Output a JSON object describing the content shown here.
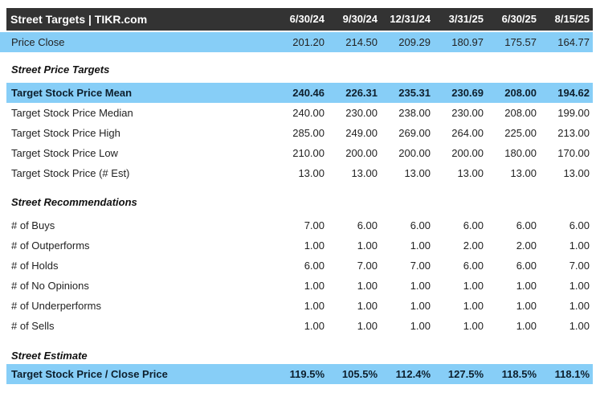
{
  "header": {
    "title": "Street Targets | TIKR.com",
    "columns": [
      "6/30/24",
      "9/30/24",
      "12/31/24",
      "3/31/25",
      "6/30/25",
      "8/15/25"
    ]
  },
  "price_close": {
    "label": "Price Close",
    "values": [
      "201.20",
      "214.50",
      "209.29",
      "180.97",
      "175.57",
      "164.77"
    ]
  },
  "sections": [
    {
      "title": "Street Price Targets",
      "rows": [
        {
          "label": "Target Stock Price Mean",
          "values": [
            "240.46",
            "226.31",
            "235.31",
            "230.69",
            "208.00",
            "194.62"
          ]
        },
        {
          "label": "Target Stock Price Median",
          "values": [
            "240.00",
            "230.00",
            "238.00",
            "230.00",
            "208.00",
            "199.00"
          ]
        },
        {
          "label": "Target Stock Price High",
          "values": [
            "285.00",
            "249.00",
            "269.00",
            "264.00",
            "225.00",
            "213.00"
          ]
        },
        {
          "label": "Target Stock Price Low",
          "values": [
            "210.00",
            "200.00",
            "200.00",
            "200.00",
            "180.00",
            "170.00"
          ]
        },
        {
          "label": "Target Stock Price (# Est)",
          "values": [
            "13.00",
            "13.00",
            "13.00",
            "13.00",
            "13.00",
            "13.00"
          ]
        }
      ]
    },
    {
      "title": "Street Recommendations",
      "rows": [
        {
          "label": "# of Buys",
          "values": [
            "7.00",
            "6.00",
            "6.00",
            "6.00",
            "6.00",
            "6.00"
          ]
        },
        {
          "label": "# of Outperforms",
          "values": [
            "1.00",
            "1.00",
            "1.00",
            "2.00",
            "2.00",
            "1.00"
          ]
        },
        {
          "label": "# of Holds",
          "values": [
            "6.00",
            "7.00",
            "7.00",
            "6.00",
            "6.00",
            "7.00"
          ]
        },
        {
          "label": "# of No Opinions",
          "values": [
            "1.00",
            "1.00",
            "1.00",
            "1.00",
            "1.00",
            "1.00"
          ]
        },
        {
          "label": "# of Underperforms",
          "values": [
            "1.00",
            "1.00",
            "1.00",
            "1.00",
            "1.00",
            "1.00"
          ]
        },
        {
          "label": "# of Sells",
          "values": [
            "1.00",
            "1.00",
            "1.00",
            "1.00",
            "1.00",
            "1.00"
          ]
        }
      ]
    },
    {
      "title": "Street Estimate",
      "rows": [
        {
          "label": "Target Stock Price / Close Price",
          "values": [
            "119.5%",
            "105.5%",
            "112.4%",
            "127.5%",
            "118.5%",
            "118.1%"
          ]
        }
      ]
    }
  ],
  "colors": {
    "header_bg": "#333333",
    "header_text": "#FFFFFF",
    "highlight_bg": "#87CEF7",
    "highlight_text": "#0D1F2D",
    "body_text": "#222222"
  }
}
